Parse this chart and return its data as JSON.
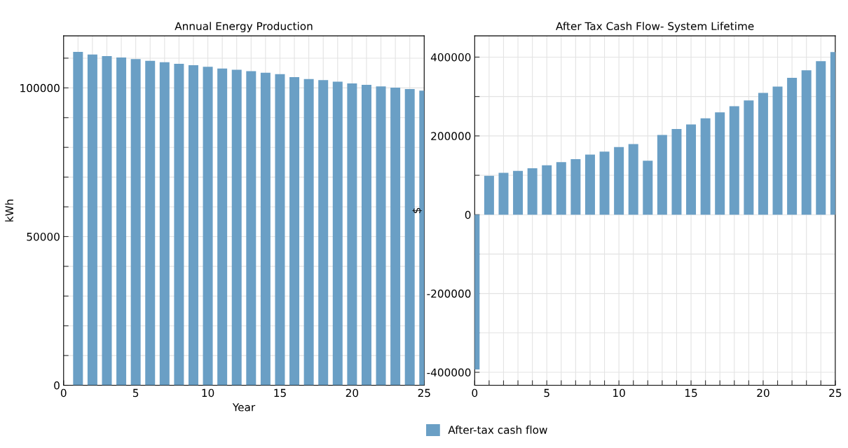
{
  "chart_data": [
    {
      "type": "bar",
      "title": "Annual Energy Production",
      "xlabel": "Year",
      "ylabel": "kWh",
      "x": [
        1,
        2,
        3,
        4,
        5,
        6,
        7,
        8,
        9,
        10,
        11,
        12,
        13,
        14,
        15,
        16,
        17,
        18,
        19,
        20,
        21,
        22,
        23,
        24,
        25
      ],
      "series": [
        {
          "color": "#6a9fc5",
          "values": [
            112100,
            111200,
            110700,
            110200,
            109700,
            109100,
            108600,
            108100,
            107600,
            107100,
            106500,
            106100,
            105600,
            105100,
            104600,
            103600,
            103000,
            102600,
            102100,
            101500,
            101000,
            100500,
            100100,
            99600,
            99100
          ]
        }
      ],
      "xlim": [
        0,
        25
      ],
      "ylim": [
        0,
        117500
      ],
      "xticks": [
        0,
        {
          "value": 1,
          "label": null
        },
        {
          "value": 2,
          "label": null
        },
        {
          "value": 3,
          "label": null
        },
        {
          "value": 4,
          "label": null
        },
        5,
        {
          "value": 6,
          "label": null
        },
        {
          "value": 7,
          "label": null
        },
        {
          "value": 8,
          "label": null
        },
        {
          "value": 9,
          "label": null
        },
        10,
        {
          "value": 11,
          "label": null
        },
        {
          "value": 12,
          "label": null
        },
        {
          "value": 13,
          "label": null
        },
        {
          "value": 14,
          "label": null
        },
        15,
        {
          "value": 16,
          "label": null
        },
        {
          "value": 17,
          "label": null
        },
        {
          "value": 18,
          "label": null
        },
        {
          "value": 19,
          "label": null
        },
        20,
        {
          "value": 21,
          "label": null
        },
        {
          "value": 22,
          "label": null
        },
        {
          "value": 23,
          "label": null
        },
        {
          "value": 24,
          "label": null
        },
        25
      ],
      "yticks": [
        0,
        {
          "value": 10000,
          "label": null
        },
        {
          "value": 20000,
          "label": null
        },
        {
          "value": 30000,
          "label": null
        },
        {
          "value": 40000,
          "label": null
        },
        50000,
        {
          "value": 60000,
          "label": null
        },
        {
          "value": 70000,
          "label": null
        },
        {
          "value": 80000,
          "label": null
        },
        {
          "value": 90000,
          "label": null
        },
        100000,
        {
          "value": 110000,
          "label": null
        }
      ],
      "grid": true
    },
    {
      "type": "bar",
      "title": "After Tax Cash Flow- System Lifetime",
      "ylabel": "$",
      "x": [
        0,
        1,
        2,
        3,
        4,
        5,
        6,
        7,
        8,
        9,
        10,
        11,
        12,
        13,
        14,
        15,
        16,
        17,
        18,
        19,
        20,
        21,
        22,
        23,
        24,
        25
      ],
      "series": [
        {
          "name": "After-tax cash flow",
          "color": "#6a9fc5",
          "values": [
            -393000,
            98800,
            106300,
            111100,
            117900,
            125400,
            133600,
            141100,
            152600,
            160100,
            171700,
            179200,
            136900,
            202400,
            217400,
            228900,
            244600,
            259600,
            275200,
            290200,
            309300,
            325000,
            347500,
            366500,
            389700,
            412900
          ]
        }
      ],
      "xlim": [
        0,
        25
      ],
      "ylim": [
        -433000,
        454000
      ],
      "xticks": [
        0,
        {
          "value": 1,
          "label": null
        },
        {
          "value": 2,
          "label": null
        },
        {
          "value": 3,
          "label": null
        },
        {
          "value": 4,
          "label": null
        },
        5,
        {
          "value": 6,
          "label": null
        },
        {
          "value": 7,
          "label": null
        },
        {
          "value": 8,
          "label": null
        },
        {
          "value": 9,
          "label": null
        },
        10,
        {
          "value": 11,
          "label": null
        },
        {
          "value": 12,
          "label": null
        },
        {
          "value": 13,
          "label": null
        },
        {
          "value": 14,
          "label": null
        },
        15,
        {
          "value": 16,
          "label": null
        },
        {
          "value": 17,
          "label": null
        },
        {
          "value": 18,
          "label": null
        },
        {
          "value": 19,
          "label": null
        },
        20,
        {
          "value": 21,
          "label": null
        },
        {
          "value": 22,
          "label": null
        },
        {
          "value": 23,
          "label": null
        },
        {
          "value": 24,
          "label": null
        },
        25
      ],
      "yticks": [
        -400000,
        {
          "value": -300000,
          "label": null
        },
        -200000,
        {
          "value": -100000,
          "label": null
        },
        0,
        {
          "value": 100000,
          "label": null
        },
        200000,
        {
          "value": 300000,
          "label": null
        },
        400000
      ],
      "grid": true,
      "legend": "bottom left"
    }
  ]
}
